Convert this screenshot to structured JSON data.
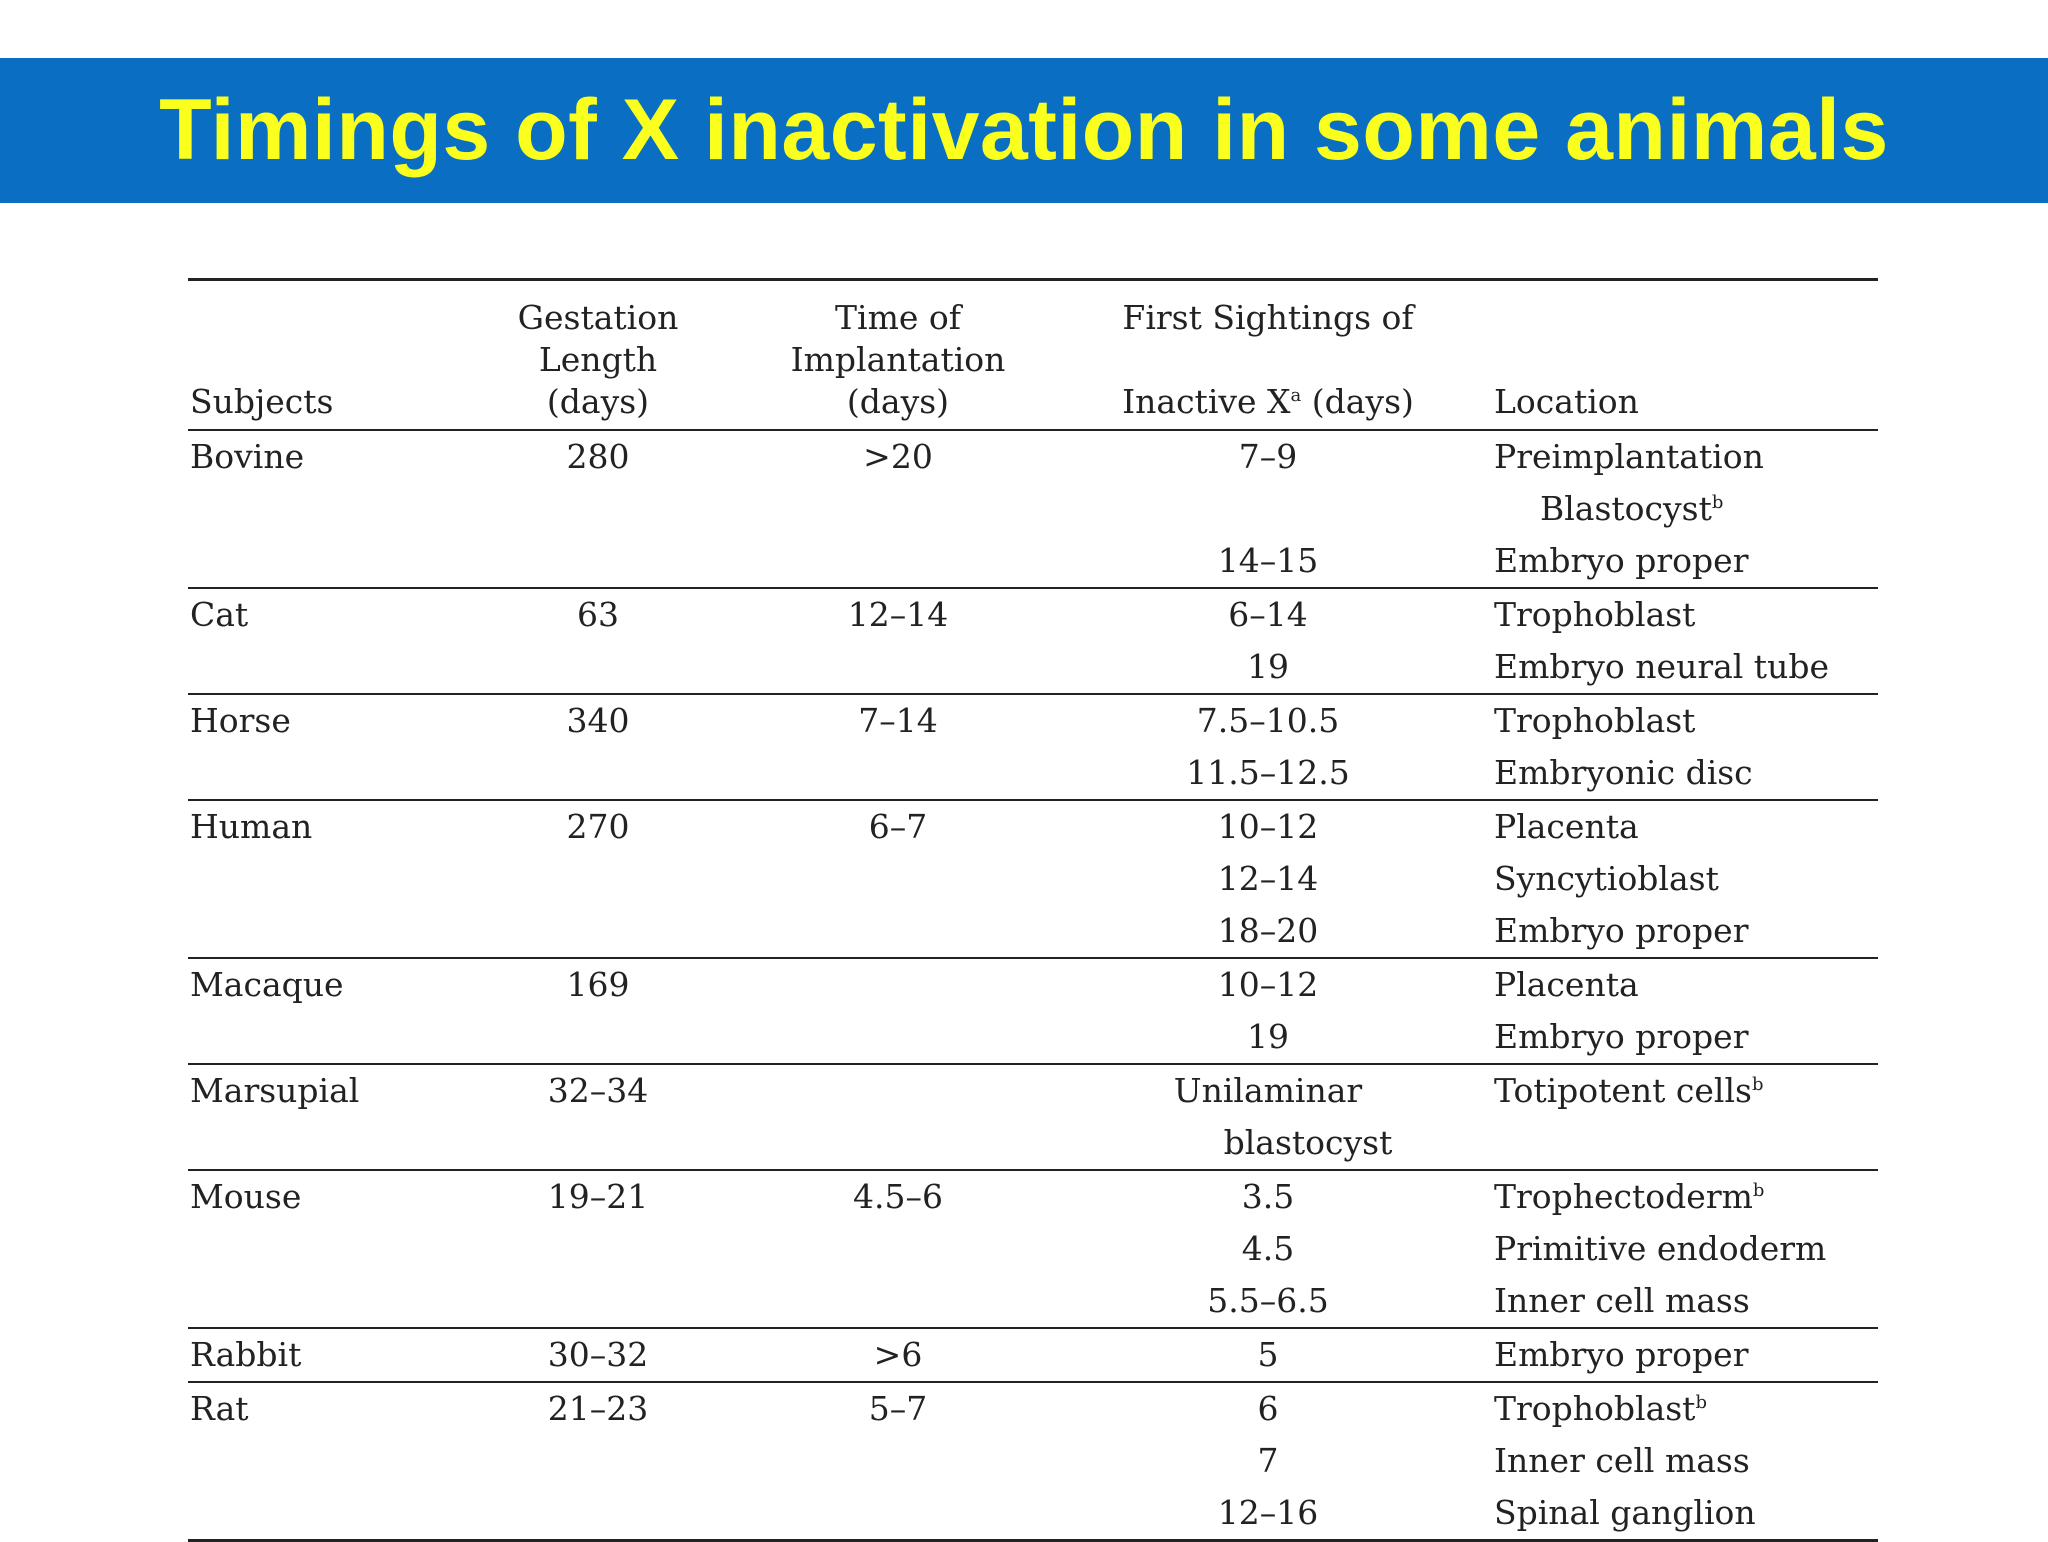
{
  "title": "Timings of X inactivation in some animals",
  "colors": {
    "banner": "#0a6fc2",
    "title": "#fbff1e"
  },
  "headers": {
    "subjects": "Subjects",
    "gestation": "Gestation\nLength\n(days)",
    "implantation": "Time of\nImplantation\n(days)",
    "first_sightings_line1": "First Sightings of",
    "first_sightings_line2_pre": "Inactive X",
    "first_sightings_sup": "a",
    "first_sightings_line2_post": " (days)",
    "location": "Location"
  },
  "groups": [
    {
      "subject": "Bovine",
      "gestation": "280",
      "implantation": ">20",
      "rows": [
        {
          "first": "7–9",
          "location": "Preimplantation",
          "loc2": "Blastocyst",
          "loc2_sup": "b"
        },
        {
          "first": "14–15",
          "location": "Embryo proper"
        }
      ]
    },
    {
      "subject": "Cat",
      "gestation": "63",
      "implantation": "12–14",
      "rows": [
        {
          "first": "6–14",
          "location": "Trophoblast"
        },
        {
          "first": "19",
          "location": "Embryo neural tube"
        }
      ]
    },
    {
      "subject": "Horse",
      "gestation": "340",
      "implantation": "7–14",
      "rows": [
        {
          "first": "7.5–10.5",
          "location": "Trophoblast"
        },
        {
          "first": "11.5–12.5",
          "location": "Embryonic disc"
        }
      ]
    },
    {
      "subject": "Human",
      "gestation": "270",
      "implantation": "6–7",
      "rows": [
        {
          "first": "10–12",
          "location": "Placenta"
        },
        {
          "first": "12–14",
          "location": "Syncytioblast"
        },
        {
          "first": "18–20",
          "location": "Embryo proper"
        }
      ]
    },
    {
      "subject": "Macaque",
      "gestation": "169",
      "implantation": "",
      "rows": [
        {
          "first": "10–12",
          "location": "Placenta"
        },
        {
          "first": "19",
          "location": "Embryo proper"
        }
      ]
    },
    {
      "subject": "Marsupial",
      "gestation": "32–34",
      "implantation": "",
      "rows": [
        {
          "first": "Unilaminar",
          "first2": "blastocyst",
          "location": "Totipotent cells",
          "loc_sup": "b"
        }
      ]
    },
    {
      "subject": "Mouse",
      "gestation": "19–21",
      "implantation": "4.5–6",
      "rows": [
        {
          "first": "3.5",
          "location": "Trophectoderm",
          "loc_sup": "b"
        },
        {
          "first": "4.5",
          "location": "Primitive endoderm"
        },
        {
          "first": "5.5–6.5",
          "location": "Inner cell mass"
        }
      ]
    },
    {
      "subject": "Rabbit",
      "gestation": "30–32",
      "implantation": ">6",
      "rows": [
        {
          "first": "5",
          "location": "Embryo proper"
        }
      ]
    },
    {
      "subject": "Rat",
      "gestation": "21–23",
      "implantation": "5–7",
      "rows": [
        {
          "first": "6",
          "location": "Trophoblast",
          "loc_sup": "b"
        },
        {
          "first": "7",
          "location": "Inner cell mass"
        },
        {
          "first": "12–16",
          "location": "Spinal ganglion"
        }
      ]
    }
  ]
}
